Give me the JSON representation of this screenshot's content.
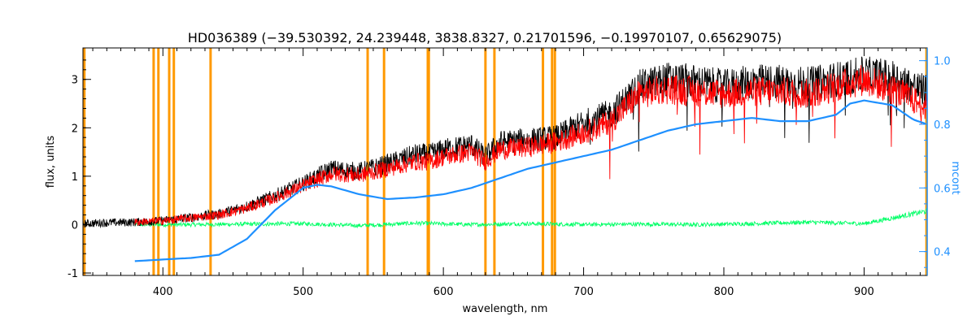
{
  "chart_data": {
    "type": "line",
    "title": "HD036389   (−39.530392, 24.239448, 3838.8327, 0.21701596, −0.19970107, 0.65629075)",
    "xlabel": "wavelength, nm",
    "ylabel": "flux, units",
    "y2label": "mcont",
    "xlim": [
      343,
      945
    ],
    "ylim": [
      -1.05,
      3.65
    ],
    "y2lim": [
      0.325,
      1.04
    ],
    "xticks": [
      400,
      500,
      600,
      700,
      800,
      900
    ],
    "yticks": [
      -1,
      0,
      1,
      2,
      3
    ],
    "y2ticks": [
      0.4,
      0.6,
      0.8,
      1.0
    ],
    "y2ticklabels": [
      "0.4",
      "0.6",
      "0.8",
      "1.0"
    ],
    "grid": false,
    "colors": {
      "observed": "#000000",
      "model": "#ff0000",
      "residual": "#00ff66",
      "continuum": "#1e90ff",
      "mask": "#ff9900",
      "right_axis": "#1e90ff"
    },
    "mask_lines": [
      344,
      393.4,
      396.8,
      404.5,
      407.8,
      434.0,
      546.0,
      557.7,
      588.9,
      589.6,
      630.0,
      636.4,
      671.0,
      677.5,
      679.5,
      944.5
    ],
    "series": [
      {
        "role": "observed",
        "x": [
          343,
          360,
          380,
          400,
          420,
          440,
          460,
          480,
          500,
          510,
          520,
          540,
          560,
          580,
          590,
          600,
          620,
          630,
          640,
          660,
          680,
          700,
          710,
          720,
          740,
          760,
          780,
          800,
          820,
          840,
          860,
          880,
          900,
          920,
          940,
          945
        ],
        "y": [
          0.02,
          0.04,
          0.05,
          0.08,
          0.15,
          0.22,
          0.38,
          0.6,
          0.85,
          1.0,
          1.15,
          1.1,
          1.25,
          1.45,
          1.45,
          1.55,
          1.65,
          1.4,
          1.7,
          1.75,
          1.8,
          2.1,
          2.2,
          2.3,
          2.85,
          3.0,
          2.95,
          2.85,
          2.95,
          2.95,
          2.9,
          3.0,
          3.1,
          3.05,
          2.8,
          2.75
        ]
      },
      {
        "role": "model",
        "x": [
          380,
          400,
          420,
          440,
          460,
          480,
          500,
          510,
          520,
          540,
          560,
          580,
          590,
          600,
          620,
          630,
          640,
          660,
          680,
          700,
          710,
          720,
          740,
          760,
          780,
          800,
          820,
          840,
          860,
          880,
          900,
          920,
          940,
          945
        ],
        "y": [
          0.05,
          0.08,
          0.14,
          0.2,
          0.34,
          0.55,
          0.8,
          0.92,
          1.05,
          1.02,
          1.15,
          1.3,
          1.3,
          1.4,
          1.5,
          1.3,
          1.55,
          1.6,
          1.7,
          1.9,
          2.0,
          2.15,
          2.7,
          2.8,
          2.75,
          2.7,
          2.75,
          2.75,
          2.7,
          2.85,
          3.0,
          2.8,
          2.5,
          2.4
        ]
      },
      {
        "role": "residual",
        "x": [
          380,
          420,
          460,
          500,
          540,
          580,
          620,
          660,
          700,
          740,
          780,
          820,
          860,
          900,
          945
        ],
        "y": [
          0.0,
          0.0,
          0.01,
          0.02,
          -0.02,
          0.03,
          0.0,
          0.02,
          0.0,
          0.01,
          0.0,
          0.02,
          0.05,
          0.02,
          0.28
        ]
      },
      {
        "role": "continuum",
        "axis": "right",
        "x": [
          380,
          400,
          420,
          440,
          460,
          480,
          500,
          510,
          520,
          540,
          560,
          580,
          600,
          620,
          640,
          660,
          680,
          700,
          720,
          740,
          760,
          780,
          800,
          820,
          840,
          860,
          880,
          890,
          900,
          920,
          935,
          945
        ],
        "y": [
          0.37,
          0.375,
          0.38,
          0.39,
          0.44,
          0.53,
          0.6,
          0.61,
          0.605,
          0.58,
          0.565,
          0.57,
          0.58,
          0.6,
          0.63,
          0.66,
          0.68,
          0.7,
          0.72,
          0.75,
          0.78,
          0.8,
          0.81,
          0.82,
          0.81,
          0.81,
          0.83,
          0.865,
          0.875,
          0.86,
          0.815,
          0.8
        ]
      }
    ]
  }
}
